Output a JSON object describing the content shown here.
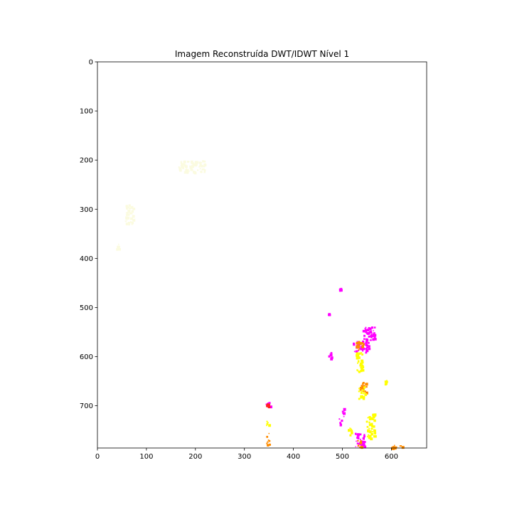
{
  "chart_data": {
    "type": "heatmap",
    "title": "Imagem Reconstruída DWT/IDWT Nível 1",
    "xlabel": "",
    "ylabel": "",
    "xlim": [
      0,
      672
    ],
    "ylim": [
      786,
      0
    ],
    "x_ticks": [
      0,
      100,
      200,
      300,
      400,
      500,
      600
    ],
    "y_ticks": [
      0,
      100,
      200,
      300,
      400,
      500,
      600,
      700
    ],
    "grid": false,
    "background": "#ffffff",
    "colors": {
      "magenta": "#ff00ff",
      "yellow": "#ffff00",
      "orange": "#ff8c00",
      "red": "#ff2020",
      "faint": "#fbfbe0"
    },
    "regions": [
      {
        "color": "magenta",
        "x": [
          521,
          553
        ],
        "y": [
          565,
          590
        ]
      },
      {
        "color": "orange",
        "x": [
          525,
          545
        ],
        "y": [
          568,
          585
        ]
      },
      {
        "color": "magenta",
        "x": [
          540,
          565
        ],
        "y": [
          538,
          568
        ]
      },
      {
        "color": "yellow",
        "x": [
          527,
          540
        ],
        "y": [
          590,
          635
        ]
      },
      {
        "color": "orange",
        "x": [
          535,
          548
        ],
        "y": [
          648,
          672
        ]
      },
      {
        "color": "yellow",
        "x": [
          532,
          545
        ],
        "y": [
          660,
          685
        ]
      },
      {
        "color": "yellow",
        "x": [
          548,
          565
        ],
        "y": [
          715,
          765
        ]
      },
      {
        "color": "magenta",
        "x": [
          525,
          545
        ],
        "y": [
          755,
          786
        ]
      },
      {
        "color": "orange",
        "x": [
          530,
          541
        ],
        "y": [
          770,
          786
        ]
      },
      {
        "color": "orange",
        "x": [
          598,
          625
        ],
        "y": [
          779,
          786
        ]
      },
      {
        "color": "magenta",
        "x": [
          343,
          352
        ],
        "y": [
          690,
          702
        ]
      },
      {
        "color": "red",
        "x": [
          344,
          349
        ],
        "y": [
          694,
          700
        ]
      },
      {
        "color": "yellow",
        "x": [
          344,
          350
        ],
        "y": [
          728,
          742
        ]
      },
      {
        "color": "orange",
        "x": [
          344,
          350
        ],
        "y": [
          755,
          778
        ]
      },
      {
        "color": "magenta",
        "x": [
          470,
          477
        ],
        "y": [
          590,
          603
        ]
      },
      {
        "color": "magenta",
        "x": [
          497,
          503
        ],
        "y": [
          700,
          722
        ]
      },
      {
        "color": "magenta",
        "x": [
          492,
          497
        ],
        "y": [
          725,
          742
        ]
      },
      {
        "color": "magenta",
        "x": [
          493,
          497
        ],
        "y": [
          460,
          465
        ]
      },
      {
        "color": "magenta",
        "x": [
          470,
          473
        ],
        "y": [
          510,
          514
        ]
      },
      {
        "color": "yellow",
        "x": [
          585,
          590
        ],
        "y": [
          645,
          655
        ]
      },
      {
        "color": "yellow",
        "x": [
          510,
          518
        ],
        "y": [
          740,
          760
        ]
      },
      {
        "color": "faint",
        "x": [
          165,
          220
        ],
        "y": [
          200,
          225
        ]
      },
      {
        "color": "faint",
        "x": [
          55,
          72
        ],
        "y": [
          290,
          330
        ]
      },
      {
        "color": "faint",
        "x": [
          35,
          45
        ],
        "y": [
          370,
          382
        ]
      }
    ]
  }
}
